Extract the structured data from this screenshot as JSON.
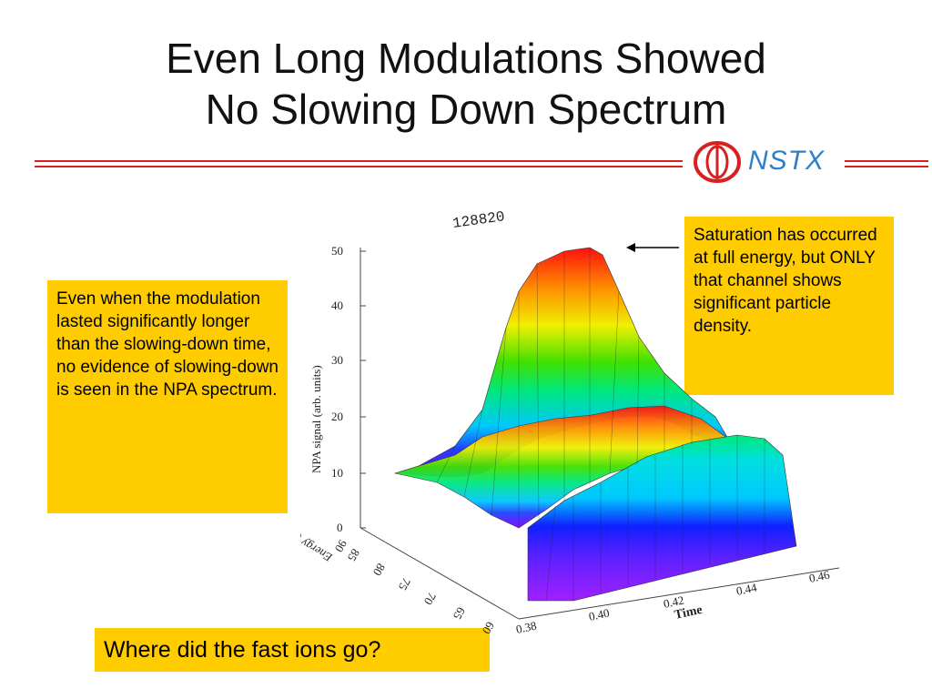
{
  "slide": {
    "title_line1": "Even Long Modulations Showed",
    "title_line2": "No Slowing Down Spectrum",
    "logo_text": "NSTX"
  },
  "notes": {
    "left": "Even when the modulation lasted significantly longer than the slowing-down time, no evidence of slowing-down is seen in the NPA spectrum.",
    "right": "Saturation has occurred at full energy, but ONLY that channel shows significant particle density.",
    "bottom": "Where did the fast ions go?"
  },
  "chart_data": {
    "type": "surface",
    "title": "128820",
    "zlabel": "NPA signal (arb. units)",
    "xlabel": "Time",
    "ylabel": "Energy (keV)",
    "z_ticks": [
      "0",
      "10",
      "20",
      "30",
      "40",
      "50"
    ],
    "x_ticks": [
      "0.38",
      "0.40",
      "0.42",
      "0.44",
      "0.46"
    ],
    "y_ticks": [
      "60",
      "65",
      "70",
      "75",
      "80",
      "85",
      "90"
    ],
    "zlim": [
      0,
      50
    ],
    "xlim": [
      0.38,
      0.46
    ],
    "ylim": [
      60,
      90
    ],
    "colormap": "rainbow"
  },
  "colors": {
    "accent_red": "#d92020",
    "logo_blue": "#2d7fc7",
    "note_bg": "#ffcc00"
  }
}
